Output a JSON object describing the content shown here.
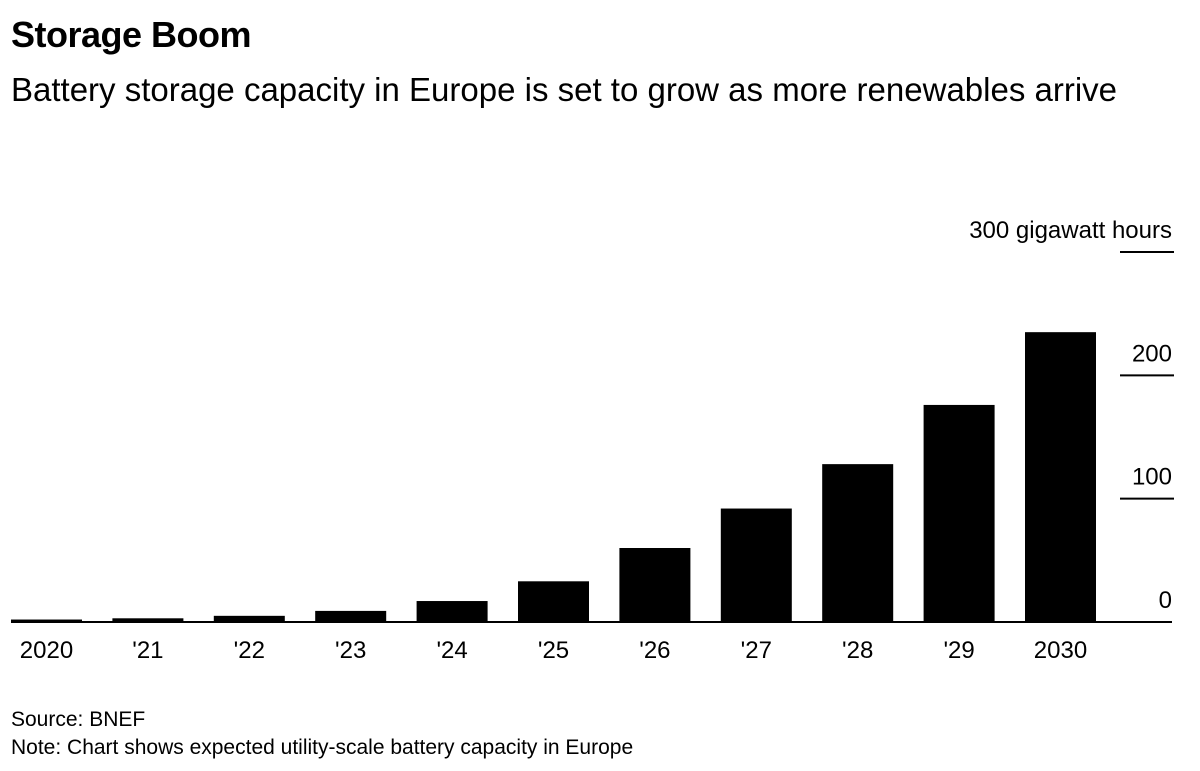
{
  "chart_data": {
    "type": "bar",
    "title": "Storage Boom",
    "subtitle": "Battery storage capacity in Europe is set to grow as more renewables arrive",
    "categories": [
      "2020",
      "'21",
      "'22",
      "'23",
      "'24",
      "'25",
      "'26",
      "'27",
      "'28",
      "'29",
      "2030"
    ],
    "values": [
      2,
      3,
      5,
      9,
      17,
      33,
      60,
      92,
      128,
      176,
      235
    ],
    "ylim": [
      0,
      300
    ],
    "yticks": [
      {
        "value": 300,
        "label": "300 gigawatt hours"
      },
      {
        "value": 200,
        "label": "200"
      },
      {
        "value": 100,
        "label": "100"
      },
      {
        "value": 0,
        "label": "0"
      }
    ],
    "xlabel": "",
    "ylabel": "gigawatt hours",
    "bar_color": "#000000",
    "source": "Source: BNEF",
    "note": "Note: Chart shows expected utility-scale battery capacity in Europe"
  }
}
